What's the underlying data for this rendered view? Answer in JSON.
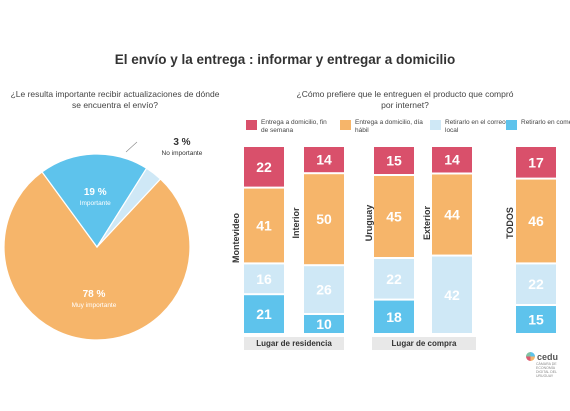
{
  "title": "El envío y la entrega : informar y entregar a domicilio",
  "colors": {
    "pink": "#d9506b",
    "orange": "#f6b56a",
    "light_blue": "#cfe8f6",
    "blue": "#5ec3ec"
  },
  "chart_data": [
    {
      "type": "pie",
      "question": "¿Le resulta importante recibir actualizaciones de dónde se encuentra el envío?",
      "slices": [
        {
          "label": "Muy importante",
          "value": 78,
          "value_label": "78 %",
          "color": "#f6b56a"
        },
        {
          "label": "Importante",
          "value": 19,
          "value_label": "19 %",
          "color": "#5ec3ec"
        },
        {
          "label": "No importante",
          "value": 3,
          "value_label": "3 %",
          "color": "#cfe8f6"
        }
      ]
    },
    {
      "type": "bar",
      "stacked": true,
      "question": "¿Cómo prefiere que le entreguen el producto que compró por internet?",
      "legend": [
        "Entrega a domicilio, fin de semana",
        "Entrega a domicilio, día hábil",
        "Retirarlo en el correo o local",
        "Retirarlo en comercio"
      ],
      "categories": [
        "Montevideo",
        "Interior",
        "Uruguay",
        "Exterior",
        "TODOS"
      ],
      "groups": [
        {
          "label": "Lugar de residencia",
          "categories": [
            "Montevideo",
            "Interior"
          ]
        },
        {
          "label": "Lugar de compra",
          "categories": [
            "Uruguay",
            "Exterior"
          ]
        }
      ],
      "series": [
        {
          "name": "Entrega a domicilio, fin de semana",
          "color": "#d9506b",
          "values": [
            22,
            14,
            15,
            14,
            17
          ]
        },
        {
          "name": "Entrega a domicilio, día hábil",
          "color": "#f6b56a",
          "values": [
            41,
            50,
            45,
            44,
            46
          ]
        },
        {
          "name": "Retirarlo en el correo o local",
          "color": "#cfe8f6",
          "values": [
            16,
            26,
            22,
            42,
            22
          ]
        },
        {
          "name": "Retirarlo en comercio",
          "color": "#5ec3ec",
          "values": [
            21,
            10,
            18,
            0,
            15
          ]
        }
      ]
    }
  ],
  "logo_text": "cedu",
  "logo_subtext": "CÁMARA DE ECONOMÍA DIGITAL DEL URUGUAY"
}
